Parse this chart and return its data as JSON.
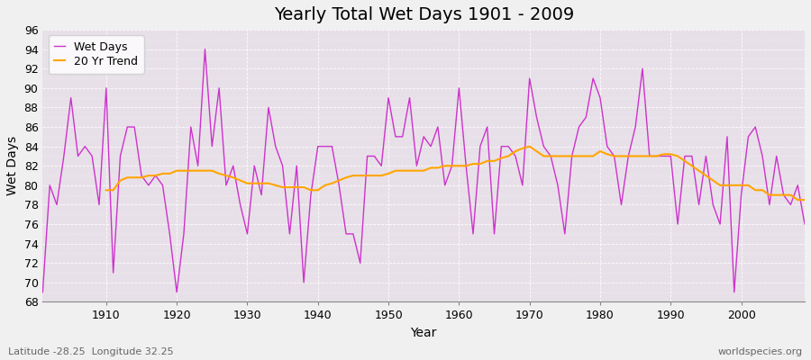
{
  "title": "Yearly Total Wet Days 1901 - 2009",
  "xlabel": "Year",
  "ylabel": "Wet Days",
  "lat_lon_label": "Latitude -28.25  Longitude 32.25",
  "watermark": "worldspecies.org",
  "line_color": "#CC33CC",
  "trend_color": "#FFA500",
  "fig_bg_color": "#F0F0F0",
  "plot_bg_color": "#E8E0E8",
  "ylim": [
    68,
    96
  ],
  "yticks": [
    68,
    70,
    72,
    74,
    76,
    78,
    80,
    82,
    84,
    86,
    88,
    90,
    92,
    94,
    96
  ],
  "xlim": [
    1901,
    2009
  ],
  "years": [
    1901,
    1902,
    1903,
    1904,
    1905,
    1906,
    1907,
    1908,
    1909,
    1910,
    1911,
    1912,
    1913,
    1914,
    1915,
    1916,
    1917,
    1918,
    1919,
    1920,
    1921,
    1922,
    1923,
    1924,
    1925,
    1926,
    1927,
    1928,
    1929,
    1930,
    1931,
    1932,
    1933,
    1934,
    1935,
    1936,
    1937,
    1938,
    1939,
    1940,
    1941,
    1942,
    1943,
    1944,
    1945,
    1946,
    1947,
    1948,
    1949,
    1950,
    1951,
    1952,
    1953,
    1954,
    1955,
    1956,
    1957,
    1958,
    1959,
    1960,
    1961,
    1962,
    1963,
    1964,
    1965,
    1966,
    1967,
    1968,
    1969,
    1970,
    1971,
    1972,
    1973,
    1974,
    1975,
    1976,
    1977,
    1978,
    1979,
    1980,
    1981,
    1982,
    1983,
    1984,
    1985,
    1986,
    1987,
    1988,
    1989,
    1990,
    1991,
    1992,
    1993,
    1994,
    1995,
    1996,
    1997,
    1998,
    1999,
    2000,
    2001,
    2002,
    2003,
    2004,
    2005,
    2006,
    2007,
    2008,
    2009
  ],
  "wet_days": [
    69,
    80,
    78,
    83,
    89,
    83,
    84,
    83,
    78,
    90,
    71,
    83,
    86,
    86,
    81,
    80,
    81,
    80,
    75,
    69,
    75,
    86,
    82,
    94,
    84,
    90,
    80,
    82,
    78,
    75,
    82,
    79,
    88,
    84,
    82,
    75,
    82,
    70,
    79,
    84,
    84,
    84,
    80,
    75,
    75,
    72,
    83,
    83,
    82,
    89,
    85,
    85,
    89,
    82,
    85,
    84,
    86,
    80,
    82,
    90,
    82,
    75,
    84,
    86,
    75,
    84,
    84,
    83,
    80,
    91,
    87,
    84,
    83,
    80,
    75,
    83,
    86,
    87,
    91,
    89,
    84,
    83,
    78,
    83,
    86,
    92,
    83,
    83,
    83,
    83,
    76,
    83,
    83,
    78,
    83,
    78,
    76,
    85,
    69,
    79,
    85,
    86,
    83,
    78,
    83,
    79,
    78,
    80,
    76
  ],
  "trend_years": [
    1910,
    1911,
    1912,
    1913,
    1914,
    1915,
    1916,
    1917,
    1918,
    1919,
    1920,
    1921,
    1922,
    1923,
    1924,
    1925,
    1926,
    1927,
    1928,
    1929,
    1930,
    1931,
    1932,
    1933,
    1934,
    1935,
    1936,
    1937,
    1938,
    1939,
    1940,
    1941,
    1942,
    1943,
    1944,
    1945,
    1946,
    1947,
    1948,
    1949,
    1950,
    1951,
    1952,
    1953,
    1954,
    1955,
    1956,
    1957,
    1958,
    1959,
    1960,
    1961,
    1962,
    1963,
    1964,
    1965,
    1966,
    1967,
    1968,
    1969,
    1970,
    1971,
    1972,
    1973,
    1974,
    1975,
    1976,
    1977,
    1978,
    1979,
    1980,
    1981,
    1982,
    1983,
    1984,
    1985,
    1986,
    1987,
    1988,
    1989,
    1990,
    1991,
    1992,
    1993,
    1994,
    1995,
    1996,
    1997,
    1998,
    1999,
    2000,
    2001,
    2002,
    2003,
    2004,
    2005,
    2006,
    2007,
    2008,
    2009
  ],
  "trend_values": [
    79.5,
    79.5,
    80.5,
    80.8,
    80.8,
    80.8,
    81.0,
    81.0,
    81.2,
    81.2,
    81.5,
    81.5,
    81.5,
    81.5,
    81.5,
    81.5,
    81.2,
    81.0,
    80.8,
    80.5,
    80.2,
    80.2,
    80.2,
    80.2,
    80.0,
    79.8,
    79.8,
    79.8,
    79.8,
    79.5,
    79.5,
    80.0,
    80.2,
    80.5,
    80.8,
    81.0,
    81.0,
    81.0,
    81.0,
    81.0,
    81.2,
    81.5,
    81.5,
    81.5,
    81.5,
    81.5,
    81.8,
    81.8,
    82.0,
    82.0,
    82.0,
    82.0,
    82.2,
    82.2,
    82.5,
    82.5,
    82.8,
    83.0,
    83.5,
    83.8,
    84.0,
    83.5,
    83.0,
    83.0,
    83.0,
    83.0,
    83.0,
    83.0,
    83.0,
    83.0,
    83.5,
    83.2,
    83.0,
    83.0,
    83.0,
    83.0,
    83.0,
    83.0,
    83.0,
    83.2,
    83.2,
    83.0,
    82.5,
    82.0,
    81.5,
    81.0,
    80.5,
    80.0,
    80.0,
    80.0,
    80.0,
    80.0,
    79.5,
    79.5,
    79.0,
    79.0,
    79.0,
    79.0,
    78.5,
    78.5
  ]
}
